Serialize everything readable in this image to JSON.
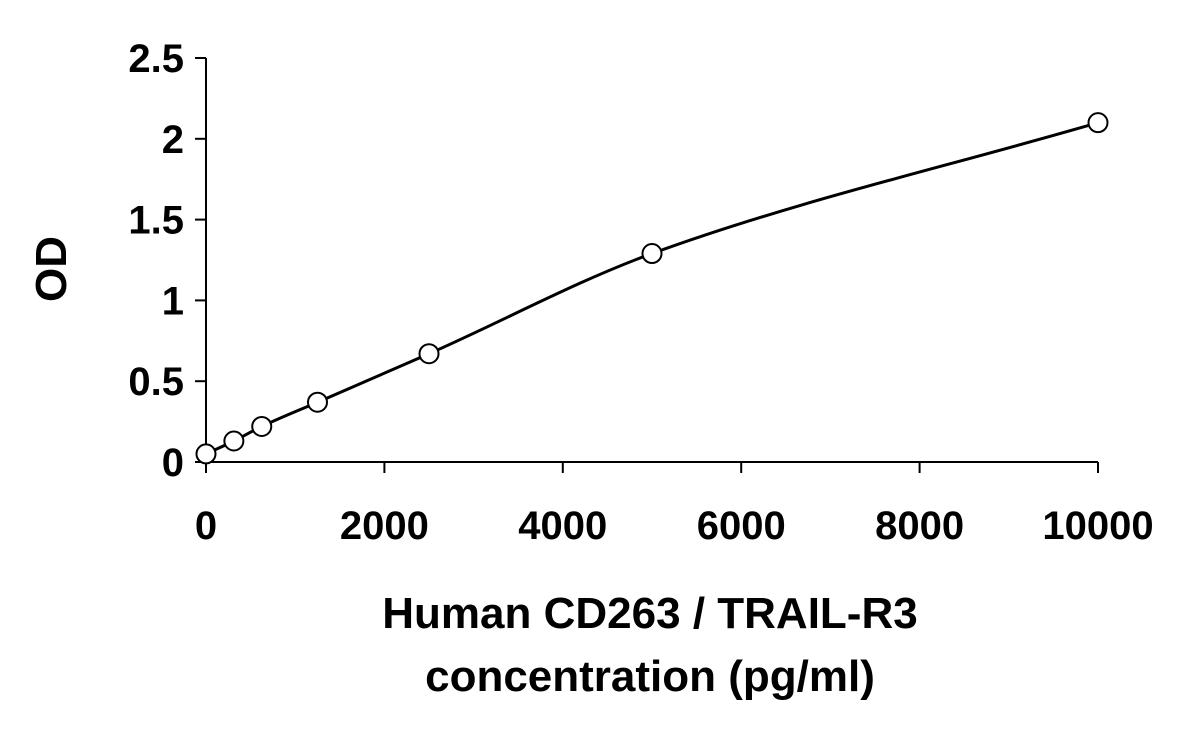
{
  "chart_data": {
    "type": "scatter",
    "title": "",
    "xlabel_lines": [
      "Human CD263 / TRAIL-R3",
      "concentration (pg/ml)"
    ],
    "ylabel": "OD",
    "xlim": [
      0,
      10000
    ],
    "ylim": [
      0,
      2.5
    ],
    "x_ticks": [
      0,
      2000,
      4000,
      6000,
      8000,
      10000
    ],
    "y_ticks": [
      0,
      0.5,
      1,
      1.5,
      2,
      2.5
    ],
    "x_tick_labels": [
      "0",
      "2000",
      "4000",
      "6000",
      "8000",
      "10000"
    ],
    "y_tick_labels": [
      "0",
      "0.5",
      "1",
      "1.5",
      "2",
      "2.5"
    ],
    "grid": false,
    "legend": "none",
    "series": [
      {
        "marker": "open-circle",
        "line": "smooth-fit",
        "x": [
          0,
          312.5,
          625,
          1250,
          2500,
          5000,
          10000
        ],
        "y": [
          0.05,
          0.13,
          0.22,
          0.37,
          0.67,
          1.29,
          2.1
        ]
      }
    ],
    "colors": {
      "line": "#000000",
      "marker_stroke": "#000000",
      "marker_fill": "#ffffff",
      "axis": "#000000"
    }
  }
}
